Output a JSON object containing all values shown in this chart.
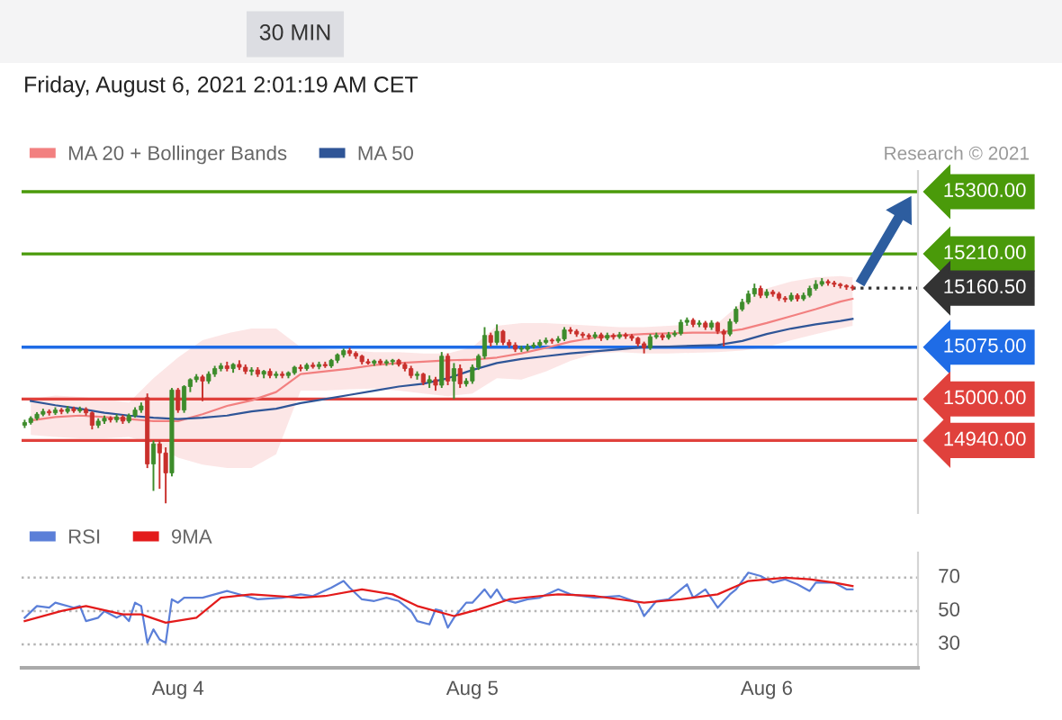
{
  "chart_data": [
    {
      "type": "candlestick",
      "subtitle": "Friday, August 6, 2021 2:01:19 AM CET",
      "annotations": [
        "30 MIN",
        "Research © 2021"
      ],
      "x": [
        "2021-08-03T11:30",
        "2021-08-03T12:00",
        "2021-08-03T12:30",
        "2021-08-03T13:00",
        "2021-08-03T13:30",
        "2021-08-03T14:00",
        "2021-08-03T14:30",
        "2021-08-03T15:00",
        "2021-08-03T15:30",
        "2021-08-03T16:00",
        "2021-08-03T16:30",
        "2021-08-03T17:00",
        "2021-08-03T17:30",
        "2021-08-03T18:00",
        "2021-08-03T18:30",
        "2021-08-03T19:00",
        "2021-08-03T19:30",
        "2021-08-03T20:00",
        "2021-08-03T20:30",
        "2021-08-03T21:00",
        "2021-08-03T21:30",
        "2021-08-03T22:00",
        "2021-08-03T22:30",
        "2021-08-03T23:00",
        "2021-08-03T23:30",
        "2021-08-04T00:00",
        "2021-08-04T00:30",
        "2021-08-04T01:00",
        "2021-08-04T01:30",
        "2021-08-04T02:00",
        "2021-08-04T02:30",
        "2021-08-04T03:00",
        "2021-08-04T03:30",
        "2021-08-04T04:00",
        "2021-08-04T04:30",
        "2021-08-04T05:00",
        "2021-08-04T05:30",
        "2021-08-04T06:00",
        "2021-08-04T06:30",
        "2021-08-04T07:00",
        "2021-08-04T07:30",
        "2021-08-04T08:00",
        "2021-08-04T08:30",
        "2021-08-04T09:00",
        "2021-08-04T09:30",
        "2021-08-04T10:00",
        "2021-08-04T10:30",
        "2021-08-04T11:00",
        "2021-08-04T11:30",
        "2021-08-04T12:00",
        "2021-08-04T12:30",
        "2021-08-04T13:00",
        "2021-08-04T13:30",
        "2021-08-04T14:00",
        "2021-08-04T14:30",
        "2021-08-04T15:00",
        "2021-08-04T15:30",
        "2021-08-04T16:00",
        "2021-08-04T16:30",
        "2021-08-04T17:00",
        "2021-08-04T17:30",
        "2021-08-04T18:00",
        "2021-08-04T18:30",
        "2021-08-04T19:00",
        "2021-08-04T19:30",
        "2021-08-04T20:00",
        "2021-08-04T20:30",
        "2021-08-04T21:00",
        "2021-08-04T21:30",
        "2021-08-04T22:00",
        "2021-08-04T22:30",
        "2021-08-04T23:00",
        "2021-08-04T23:30",
        "2021-08-05T00:00",
        "2021-08-05T00:30",
        "2021-08-05T01:00",
        "2021-08-05T01:30",
        "2021-08-05T02:00",
        "2021-08-05T02:30",
        "2021-08-05T03:00",
        "2021-08-05T03:30",
        "2021-08-05T04:00",
        "2021-08-05T04:30",
        "2021-08-05T05:00",
        "2021-08-05T05:30",
        "2021-08-05T06:00",
        "2021-08-05T06:30",
        "2021-08-05T07:00",
        "2021-08-05T07:30",
        "2021-08-05T08:00",
        "2021-08-05T08:30",
        "2021-08-05T09:00",
        "2021-08-05T09:30",
        "2021-08-05T10:00",
        "2021-08-05T10:30",
        "2021-08-05T11:00",
        "2021-08-05T11:30",
        "2021-08-05T12:00",
        "2021-08-05T12:30",
        "2021-08-05T13:00",
        "2021-08-05T13:30",
        "2021-08-05T14:00",
        "2021-08-05T14:30",
        "2021-08-05T15:00",
        "2021-08-05T15:30",
        "2021-08-05T16:00",
        "2021-08-05T16:30",
        "2021-08-05T17:00",
        "2021-08-05T17:30",
        "2021-08-05T18:00",
        "2021-08-05T18:30",
        "2021-08-05T19:00",
        "2021-08-05T19:30",
        "2021-08-05T20:00",
        "2021-08-05T20:30",
        "2021-08-05T21:00",
        "2021-08-05T21:30",
        "2021-08-05T22:00",
        "2021-08-05T22:30",
        "2021-08-05T23:00",
        "2021-08-05T23:30",
        "2021-08-06T00:00",
        "2021-08-06T00:30",
        "2021-08-06T01:00",
        "2021-08-06T01:30",
        "2021-08-06T02:00",
        "2021-08-06T02:30",
        "2021-08-06T03:00",
        "2021-08-06T03:30",
        "2021-08-06T04:00",
        "2021-08-06T04:30",
        "2021-08-06T05:00",
        "2021-08-06T05:30",
        "2021-08-06T06:00",
        "2021-08-06T06:30",
        "2021-08-06T07:00"
      ],
      "ohlc": [
        [
          14962,
          14970,
          14958,
          14966
        ],
        [
          14966,
          14975,
          14963,
          14972
        ],
        [
          14972,
          14981,
          14969,
          14978
        ],
        [
          14978,
          14986,
          14975,
          14982
        ],
        [
          14982,
          14985,
          14976,
          14980
        ],
        [
          14980,
          14988,
          14977,
          14984
        ],
        [
          14984,
          14987,
          14978,
          14982
        ],
        [
          14982,
          14990,
          14979,
          14986
        ],
        [
          14986,
          14989,
          14980,
          14983
        ],
        [
          14983,
          14989,
          14980,
          14985
        ],
        [
          14985,
          14988,
          14976,
          14980
        ],
        [
          14980,
          14982,
          14956,
          14962
        ],
        [
          14962,
          14972,
          14958,
          14968
        ],
        [
          14968,
          14976,
          14964,
          14972
        ],
        [
          14972,
          14975,
          14966,
          14970
        ],
        [
          14970,
          14978,
          14966,
          14974
        ],
        [
          14974,
          14977,
          14964,
          14968
        ],
        [
          14968,
          14979,
          14965,
          14976
        ],
        [
          14976,
          14988,
          14973,
          14984
        ],
        [
          14984,
          14995,
          14980,
          14990
        ],
        [
          15002,
          15008,
          14900,
          14906
        ],
        [
          14906,
          14940,
          14867,
          14935
        ],
        [
          14935,
          14940,
          14870,
          14922
        ],
        [
          14922,
          14930,
          14849,
          14893
        ],
        [
          14893,
          15016,
          14888,
          15013
        ],
        [
          15013,
          15016,
          14980,
          14984
        ],
        [
          14984,
          15020,
          14980,
          15018
        ],
        [
          15018,
          15030,
          15010,
          15028
        ],
        [
          15028,
          15036,
          15024,
          15032
        ],
        [
          15032,
          15035,
          14997,
          15026
        ],
        [
          15026,
          15040,
          15022,
          15036
        ],
        [
          15036,
          15048,
          15032,
          15044
        ],
        [
          15044,
          15052,
          15040,
          15048
        ],
        [
          15048,
          15054,
          15040,
          15044
        ],
        [
          15044,
          15052,
          15038,
          15050
        ],
        [
          15050,
          15056,
          15042,
          15046
        ],
        [
          15046,
          15050,
          15036,
          15040
        ],
        [
          15040,
          15046,
          15034,
          15042
        ],
        [
          15042,
          15046,
          15032,
          15036
        ],
        [
          15036,
          15042,
          15030,
          15040
        ],
        [
          15040,
          15044,
          15030,
          15034
        ],
        [
          15034,
          15040,
          15030,
          15036
        ],
        [
          15036,
          15040,
          15030,
          15034
        ],
        [
          15034,
          15040,
          15030,
          15038
        ],
        [
          15038,
          15048,
          15035,
          15046
        ],
        [
          15046,
          15050,
          15040,
          15044
        ],
        [
          15044,
          15052,
          15041,
          15049
        ],
        [
          15049,
          15053,
          15044,
          15047
        ],
        [
          15047,
          15054,
          15043,
          15050
        ],
        [
          15050,
          15054,
          15045,
          15048
        ],
        [
          15048,
          15058,
          15045,
          15056
        ],
        [
          15056,
          15066,
          15052,
          15064
        ],
        [
          15064,
          15073,
          15060,
          15070
        ],
        [
          15070,
          15074,
          15062,
          15066
        ],
        [
          15066,
          15069,
          15058,
          15062
        ],
        [
          15062,
          15064,
          15050,
          15054
        ],
        [
          15054,
          15058,
          15050,
          15052
        ],
        [
          15052,
          15057,
          15048,
          15055
        ],
        [
          15055,
          15058,
          15049,
          15052
        ],
        [
          15052,
          15057,
          15048,
          15054
        ],
        [
          15054,
          15058,
          15049,
          15056
        ],
        [
          15056,
          15058,
          15047,
          15050
        ],
        [
          15050,
          15053,
          15040,
          15044
        ],
        [
          15044,
          15048,
          15030,
          15034
        ],
        [
          15034,
          15040,
          15028,
          15036
        ],
        [
          15036,
          15038,
          15020,
          15024
        ],
        [
          15024,
          15034,
          15016,
          15028
        ],
        [
          15028,
          15032,
          15012,
          15020
        ],
        [
          15020,
          15068,
          15016,
          15062
        ],
        [
          15062,
          15066,
          15020,
          15026
        ],
        [
          15026,
          15052,
          15000,
          15044
        ],
        [
          15044,
          15050,
          15016,
          15022
        ],
        [
          15022,
          15030,
          15018,
          15026
        ],
        [
          15026,
          15050,
          15022,
          15046
        ],
        [
          15046,
          15065,
          15042,
          15062
        ],
        [
          15062,
          15104,
          15058,
          15092
        ],
        [
          15092,
          15096,
          15076,
          15082
        ],
        [
          15082,
          15108,
          15078,
          15098
        ],
        [
          15098,
          15100,
          15078,
          15082
        ],
        [
          15082,
          15086,
          15074,
          15078
        ],
        [
          15078,
          15082,
          15068,
          15072
        ],
        [
          15072,
          15077,
          15068,
          15072
        ],
        [
          15072,
          15080,
          15069,
          15076
        ],
        [
          15076,
          15082,
          15073,
          15078
        ],
        [
          15078,
          15086,
          15075,
          15082
        ],
        [
          15082,
          15089,
          15079,
          15085
        ],
        [
          15085,
          15088,
          15080,
          15084
        ],
        [
          15084,
          15091,
          15081,
          15087
        ],
        [
          15087,
          15104,
          15084,
          15100
        ],
        [
          15100,
          15104,
          15094,
          15098
        ],
        [
          15098,
          15101,
          15090,
          15094
        ],
        [
          15094,
          15097,
          15088,
          15092
        ],
        [
          15092,
          15095,
          15086,
          15090
        ],
        [
          15090,
          15097,
          15087,
          15093
        ],
        [
          15093,
          15096,
          15084,
          15088
        ],
        [
          15088,
          15096,
          15085,
          15092
        ],
        [
          15092,
          15095,
          15086,
          15090
        ],
        [
          15090,
          15097,
          15087,
          15093
        ],
        [
          15093,
          15096,
          15087,
          15091
        ],
        [
          15091,
          15094,
          15084,
          15088
        ],
        [
          15088,
          15090,
          15076,
          15080
        ],
        [
          15080,
          15083,
          15066,
          15074
        ],
        [
          15074,
          15094,
          15071,
          15090
        ],
        [
          15090,
          15096,
          15087,
          15092
        ],
        [
          15092,
          15095,
          15085,
          15089
        ],
        [
          15089,
          15097,
          15086,
          15093
        ],
        [
          15093,
          15099,
          15090,
          15095
        ],
        [
          15095,
          15115,
          15092,
          15111
        ],
        [
          15111,
          15118,
          15106,
          15114
        ],
        [
          15114,
          15117,
          15104,
          15108
        ],
        [
          15108,
          15114,
          15104,
          15110
        ],
        [
          15110,
          15113,
          15100,
          15104
        ],
        [
          15104,
          15114,
          15100,
          15110
        ],
        [
          15110,
          15112,
          15094,
          15098
        ],
        [
          15098,
          15101,
          15076,
          15094
        ],
        [
          15094,
          15116,
          15091,
          15112
        ],
        [
          15112,
          15134,
          15109,
          15130
        ],
        [
          15130,
          15145,
          15127,
          15140
        ],
        [
          15140,
          15157,
          15137,
          15152
        ],
        [
          15152,
          15167,
          15148,
          15160
        ],
        [
          15160,
          15164,
          15146,
          15150
        ],
        [
          15150,
          15159,
          15146,
          15155
        ],
        [
          15155,
          15158,
          15148,
          15152
        ],
        [
          15152,
          15155,
          15142,
          15146
        ],
        [
          15146,
          15149,
          15140,
          15144
        ],
        [
          15144,
          15154,
          15141,
          15150
        ],
        [
          15150,
          15153,
          15141,
          15145
        ],
        [
          15145,
          15154,
          15142,
          15150
        ],
        [
          15150,
          15164,
          15147,
          15160
        ],
        [
          15160,
          15172,
          15157,
          15166
        ],
        [
          15166,
          15175,
          15163,
          15170
        ],
        [
          15170,
          15173,
          15164,
          15168
        ],
        [
          15168,
          15171,
          15162,
          15166
        ],
        [
          15166,
          15168,
          15160,
          15164
        ],
        [
          15164,
          15166,
          15158,
          15162
        ],
        [
          15162,
          15165,
          15157,
          15160.5
        ]
      ],
      "series": [
        {
          "name": "MA 20 + Bollinger Bands",
          "type": "line",
          "color": "#f28080",
          "x": [
            "2021-08-03T12:00",
            "2021-08-03T14:00",
            "2021-08-03T16:00",
            "2021-08-03T18:00",
            "2021-08-03T20:00",
            "2021-08-03T22:00",
            "2021-08-04T00:00",
            "2021-08-04T02:00",
            "2021-08-04T04:00",
            "2021-08-04T06:00",
            "2021-08-04T08:00",
            "2021-08-04T10:00",
            "2021-08-04T12:00",
            "2021-08-04T14:00",
            "2021-08-04T16:00",
            "2021-08-04T18:00",
            "2021-08-04T20:00",
            "2021-08-04T22:00",
            "2021-08-05T00:00",
            "2021-08-05T02:00",
            "2021-08-05T04:00",
            "2021-08-05T06:00",
            "2021-08-05T08:00",
            "2021-08-05T10:00",
            "2021-08-05T12:00",
            "2021-08-05T14:00",
            "2021-08-05T16:00",
            "2021-08-05T18:00",
            "2021-08-05T20:00",
            "2021-08-05T22:00",
            "2021-08-06T00:00",
            "2021-08-06T02:00",
            "2021-08-06T04:00",
            "2021-08-06T06:00",
            "2021-08-06T07:00"
          ],
          "values": [
            14969,
            14974,
            14976,
            14974,
            14971,
            14968,
            14968,
            14978,
            14990,
            14998,
            15010,
            15036,
            15040,
            15044,
            15049,
            15052,
            15054,
            15056,
            15057,
            15060,
            15066,
            15074,
            15083,
            15089,
            15092,
            15094,
            15095,
            15096,
            15096,
            15101,
            15110,
            15120,
            15130,
            15141,
            15145
          ],
          "lower": [
            14948,
            14945,
            14943,
            14943,
            14945,
            14935,
            14915,
            14905,
            14900,
            14900,
            14920,
            15012,
            15012,
            15014,
            15015,
            15012,
            15008,
            15004,
            15008,
            15030,
            15028,
            15040,
            15055,
            15066,
            15068,
            15066,
            15066,
            15067,
            15068,
            15070,
            15075,
            15085,
            15094,
            15102,
            15106
          ],
          "upper": [
            15000,
            15005,
            15003,
            15000,
            14995,
            15030,
            15060,
            15085,
            15095,
            15102,
            15102,
            15075,
            15072,
            15070,
            15068,
            15068,
            15066,
            15066,
            15075,
            15106,
            15110,
            15110,
            15108,
            15106,
            15104,
            15104,
            15106,
            15108,
            15110,
            15140,
            15160,
            15170,
            15176,
            15178,
            15176
          ]
        },
        {
          "name": "MA 50",
          "type": "line",
          "color": "#2f5597",
          "x": [
            "2021-08-03T12:00",
            "2021-08-03T14:00",
            "2021-08-03T16:00",
            "2021-08-03T18:00",
            "2021-08-03T20:00",
            "2021-08-03T22:00",
            "2021-08-04T00:00",
            "2021-08-04T02:00",
            "2021-08-04T04:00",
            "2021-08-04T06:00",
            "2021-08-04T08:00",
            "2021-08-04T10:00",
            "2021-08-04T12:00",
            "2021-08-04T14:00",
            "2021-08-04T16:00",
            "2021-08-04T18:00",
            "2021-08-04T20:00",
            "2021-08-04T22:00",
            "2021-08-05T00:00",
            "2021-08-05T02:00",
            "2021-08-05T04:00",
            "2021-08-05T06:00",
            "2021-08-05T08:00",
            "2021-08-05T10:00",
            "2021-08-05T12:00",
            "2021-08-05T14:00",
            "2021-08-05T16:00",
            "2021-08-05T18:00",
            "2021-08-05T20:00",
            "2021-08-05T22:00",
            "2021-08-06T00:00",
            "2021-08-06T02:00",
            "2021-08-06T04:00",
            "2021-08-06T06:00",
            "2021-08-06T07:00"
          ],
          "values": [
            14997,
            14991,
            14986,
            14980,
            14976,
            14973,
            14971,
            14973,
            14976,
            14982,
            14986,
            14994,
            15000,
            15006,
            15012,
            15018,
            15022,
            15030,
            15042,
            15052,
            15058,
            15062,
            15066,
            15069,
            15072,
            15075,
            15076,
            15077,
            15078,
            15084,
            15094,
            15102,
            15108,
            15113,
            15116
          ]
        }
      ],
      "xlim": [
        "2021-08-03T11:15",
        "2021-08-06T12:20"
      ],
      "ylim": [
        14835,
        15330
      ],
      "ref_lines": [
        {
          "axis": "y",
          "value": 15300,
          "label": "15300.00",
          "color": "#4a9a0a"
        },
        {
          "axis": "y",
          "value": 15210,
          "label": "15210.00",
          "color": "#4a9a0a"
        },
        {
          "axis": "y",
          "value": 15160.5,
          "label": "15160.50",
          "color": "#333333",
          "line_style": "dotted"
        },
        {
          "axis": "y",
          "value": 15075,
          "label": "15075.00",
          "color": "#1f6ce6"
        },
        {
          "axis": "y",
          "value": 15000,
          "label": "15000.00",
          "color": "#e0413c"
        },
        {
          "axis": "y",
          "value": 14940,
          "label": "14940.00",
          "color": "#e0413c"
        }
      ],
      "legend": "top left",
      "tick_labels": false
    },
    {
      "type": "line",
      "series": [
        {
          "name": "RSI",
          "color": "#5b7fd8",
          "x": [
            "2021-08-03T11:30",
            "2021-08-03T12:30",
            "2021-08-03T13:30",
            "2021-08-03T14:00",
            "2021-08-03T15:30",
            "2021-08-03T16:00",
            "2021-08-03T16:30",
            "2021-08-03T17:30",
            "2021-08-03T18:00",
            "2021-08-03T19:00",
            "2021-08-03T19:30",
            "2021-08-03T20:00",
            "2021-08-03T20:30",
            "2021-08-03T21:00",
            "2021-08-03T21:30",
            "2021-08-03T22:00",
            "2021-08-03T22:30",
            "2021-08-03T23:00",
            "2021-08-03T23:30",
            "2021-08-04T00:00",
            "2021-08-04T00:30",
            "2021-08-04T02:00",
            "2021-08-04T03:00",
            "2021-08-04T04:00",
            "2021-08-04T05:30",
            "2021-08-04T06:30",
            "2021-08-04T08:30",
            "2021-08-04T10:00",
            "2021-08-04T11:00",
            "2021-08-04T12:30",
            "2021-08-04T13:30",
            "2021-08-04T14:00",
            "2021-08-04T15:00",
            "2021-08-04T16:00",
            "2021-08-04T17:00",
            "2021-08-04T18:00",
            "2021-08-04T19:00",
            "2021-08-04T19:30",
            "2021-08-04T20:30",
            "2021-08-04T21:00",
            "2021-08-04T21:30",
            "2021-08-04T22:00",
            "2021-08-04T22:30",
            "2021-08-04T23:30",
            "2021-08-05T00:00",
            "2021-08-05T01:00",
            "2021-08-05T01:30",
            "2021-08-05T02:00",
            "2021-08-05T02:30",
            "2021-08-05T03:30",
            "2021-08-05T04:30",
            "2021-08-05T05:30",
            "2021-08-05T07:00",
            "2021-08-05T08:00",
            "2021-08-05T10:00",
            "2021-08-05T12:00",
            "2021-08-05T13:30",
            "2021-08-05T14:00",
            "2021-08-05T15:00",
            "2021-08-05T16:00",
            "2021-08-05T17:30",
            "2021-08-05T18:00",
            "2021-08-05T19:00",
            "2021-08-05T20:00",
            "2021-08-05T21:00",
            "2021-08-05T21:30",
            "2021-08-05T22:30",
            "2021-08-05T23:30",
            "2021-08-06T00:30",
            "2021-08-06T01:30",
            "2021-08-06T02:30",
            "2021-08-06T03:30",
            "2021-08-06T04:00",
            "2021-08-06T05:30",
            "2021-08-06T06:30",
            "2021-08-06T07:00"
          ],
          "values": [
            46,
            53,
            52,
            55,
            52,
            53,
            44,
            46,
            50,
            46,
            48,
            44,
            55,
            53,
            31,
            39,
            33,
            31,
            57,
            55,
            58,
            58,
            60,
            62,
            59,
            57,
            58,
            60,
            59,
            64,
            68,
            64,
            57,
            56,
            58,
            56,
            50,
            44,
            42,
            51,
            50,
            40,
            46,
            55,
            55,
            63,
            58,
            63,
            57,
            55,
            57,
            58,
            63,
            60,
            58,
            59,
            55,
            47,
            56,
            57,
            66,
            58,
            63,
            52,
            60,
            63,
            73,
            71,
            67,
            69,
            66,
            62,
            67,
            67,
            63,
            63
          ]
        },
        {
          "name": "9MA",
          "color": "#e31b1b",
          "x": [
            "2021-08-03T11:30",
            "2021-08-03T14:30",
            "2021-08-03T16:30",
            "2021-08-03T19:30",
            "2021-08-03T21:00",
            "2021-08-03T23:00",
            "2021-08-04T01:30",
            "2021-08-04T03:30",
            "2021-08-04T06:00",
            "2021-08-04T10:00",
            "2021-08-04T12:00",
            "2021-08-04T15:00",
            "2021-08-04T17:30",
            "2021-08-04T19:30",
            "2021-08-04T22:30",
            "2021-08-05T00:30",
            "2021-08-05T03:00",
            "2021-08-05T05:30",
            "2021-08-05T07:00",
            "2021-08-05T10:00",
            "2021-08-05T14:00",
            "2021-08-05T17:00",
            "2021-08-05T20:00",
            "2021-08-05T22:30",
            "2021-08-06T01:30",
            "2021-08-06T03:30",
            "2021-08-06T05:30",
            "2021-08-06T07:00"
          ],
          "values": [
            44,
            50,
            53,
            48,
            48,
            43,
            46,
            58,
            60,
            58,
            59,
            63,
            60,
            53,
            47,
            51,
            57,
            59,
            60,
            59,
            55,
            57,
            60,
            68,
            70,
            69,
            67,
            65
          ]
        }
      ],
      "xlim": [
        "2021-08-03T11:15",
        "2021-08-06T12:20"
      ],
      "xticks": [
        {
          "value": "2021-08-04",
          "label": "Aug 4"
        },
        {
          "value": "2021-08-05",
          "label": "Aug 5"
        },
        {
          "value": "2021-08-06",
          "label": "Aug 6"
        }
      ],
      "ylim": [
        16,
        85
      ],
      "ref_lines": [
        {
          "axis": "y",
          "value": 70,
          "label": "70",
          "line_style": "dotted"
        },
        {
          "axis": "y",
          "value": 50,
          "label": "50",
          "line_style": "dotted"
        },
        {
          "axis": "y",
          "value": 30,
          "label": "30",
          "line_style": "dotted"
        }
      ],
      "legend": "top left",
      "tick_labels": "x"
    }
  ]
}
